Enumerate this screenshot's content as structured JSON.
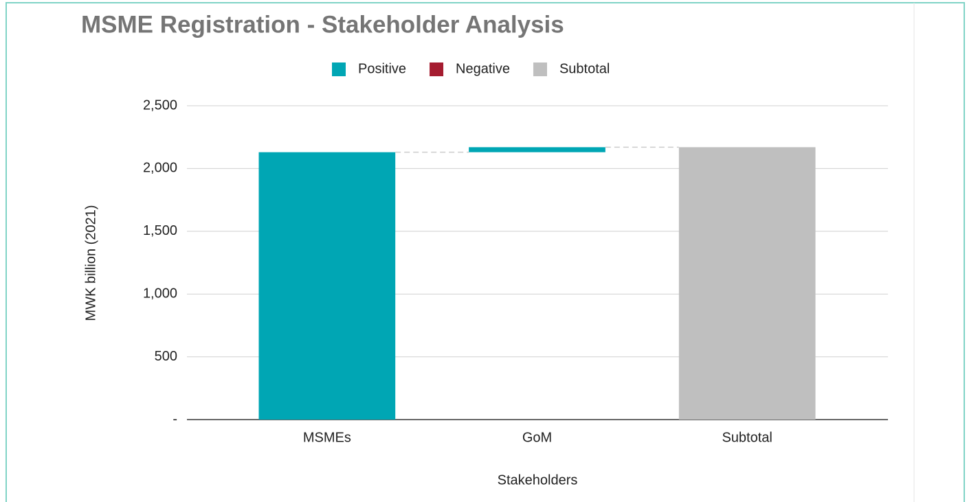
{
  "chart_data": {
    "type": "waterfall",
    "title": "MSME Registration - Stakeholder Analysis",
    "categories": [
      "MSMEs",
      "GoM",
      "Subtotal"
    ],
    "series": [
      {
        "name": "Positive",
        "color": "#00a6b4",
        "values": [
          2130,
          40,
          null
        ]
      },
      {
        "name": "Negative",
        "color": "#a51c30",
        "values": [
          null,
          null,
          null
        ]
      },
      {
        "name": "Subtotal",
        "color": "#bfbfbf",
        "values": [
          null,
          null,
          2170
        ]
      }
    ],
    "xlabel": "Stakeholders",
    "ylabel": "MWK billion (2021)",
    "ylim": [
      0,
      2500
    ],
    "yticks": [
      {
        "value": 0,
        "label": "-"
      },
      500,
      {
        "value": 1000,
        "label": "1,000"
      },
      {
        "value": 1500,
        "label": "1,500"
      },
      {
        "value": 2000,
        "label": "2,000"
      },
      {
        "value": 2500,
        "label": "2,500"
      }
    ],
    "grid": true,
    "legend": "top"
  }
}
